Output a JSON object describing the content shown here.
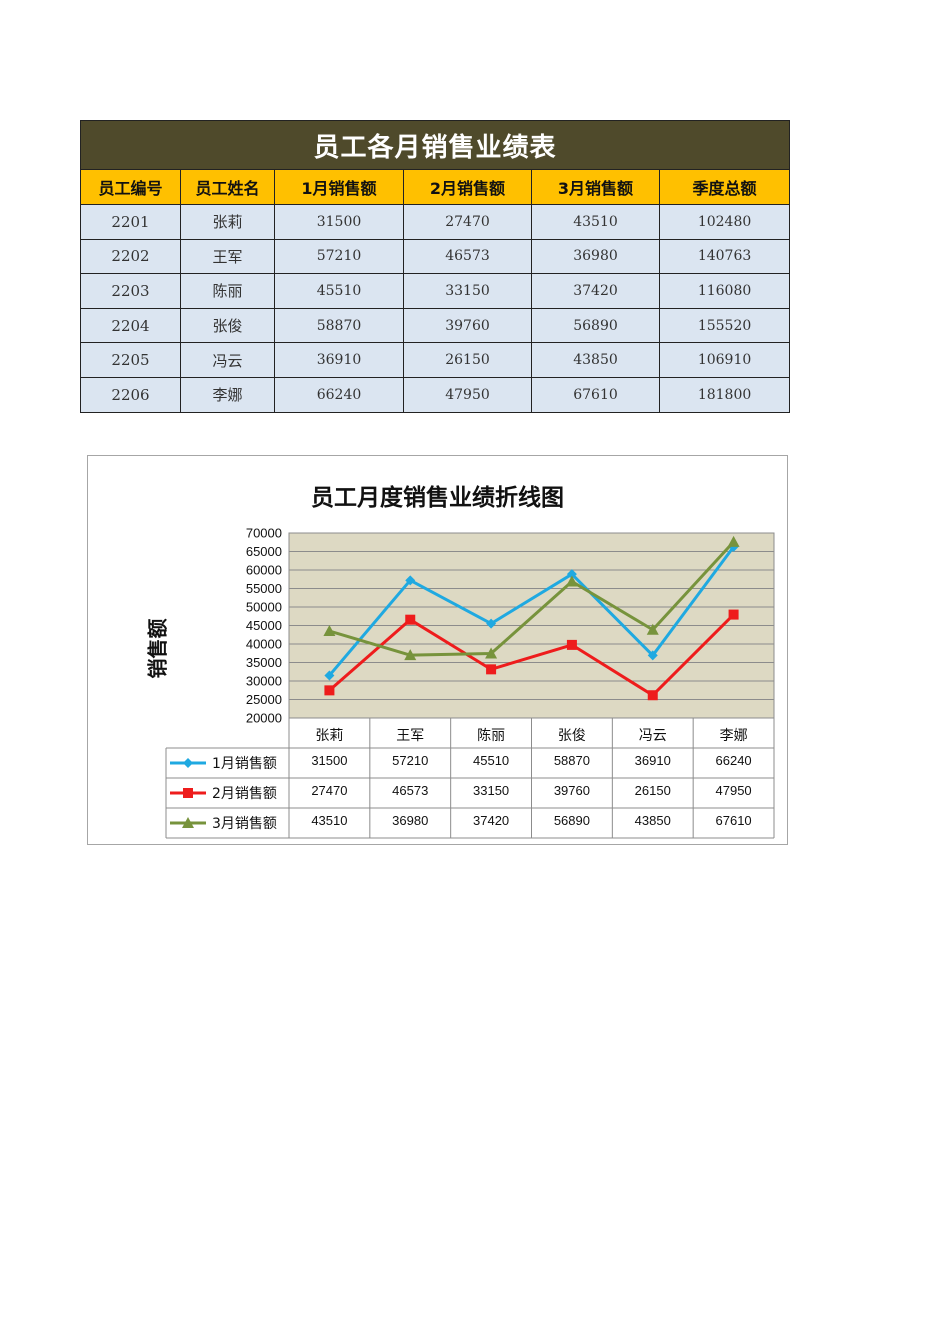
{
  "table": {
    "title": "员工各月销售业绩表",
    "headers": [
      "员工编号",
      "员工姓名",
      "1月销售额",
      "2月销售额",
      "3月销售额",
      "季度总额"
    ],
    "rows": [
      [
        "2201",
        "张莉",
        "31500",
        "27470",
        "43510",
        "102480"
      ],
      [
        "2202",
        "王军",
        "57210",
        "46573",
        "36980",
        "140763"
      ],
      [
        "2203",
        "陈丽",
        "45510",
        "33150",
        "37420",
        "116080"
      ],
      [
        "2204",
        "张俊",
        "58870",
        "39760",
        "56890",
        "155520"
      ],
      [
        "2205",
        "冯云",
        "36910",
        "26150",
        "43850",
        "106910"
      ],
      [
        "2206",
        "李娜",
        "66240",
        "47950",
        "67610",
        "181800"
      ]
    ]
  },
  "chart_data": {
    "type": "line",
    "title": "员工月度销售业绩折线图",
    "xlabel": "",
    "ylabel": "销售额",
    "ylim": [
      20000,
      70000
    ],
    "yticks": [
      "20000",
      "25000",
      "30000",
      "35000",
      "40000",
      "45000",
      "50000",
      "55000",
      "60000",
      "65000",
      "70000"
    ],
    "grid": true,
    "legend": "data-table-left",
    "categories": [
      "张莉",
      "王军",
      "陈丽",
      "张俊",
      "冯云",
      "李娜"
    ],
    "series": [
      {
        "name": "1月销售额",
        "values": [
          31500,
          57210,
          45510,
          58870,
          36910,
          66240
        ],
        "color": "#1fa9e1",
        "marker": "diamond"
      },
      {
        "name": "2月销售额",
        "values": [
          27470,
          46573,
          33150,
          39760,
          26150,
          47950
        ],
        "color": "#ee1c1c",
        "marker": "square"
      },
      {
        "name": "3月销售额",
        "values": [
          43510,
          36980,
          37420,
          56890,
          43850,
          67610
        ],
        "color": "#77933c",
        "marker": "triangle"
      }
    ],
    "plot_bg": "#ddd9c3"
  }
}
